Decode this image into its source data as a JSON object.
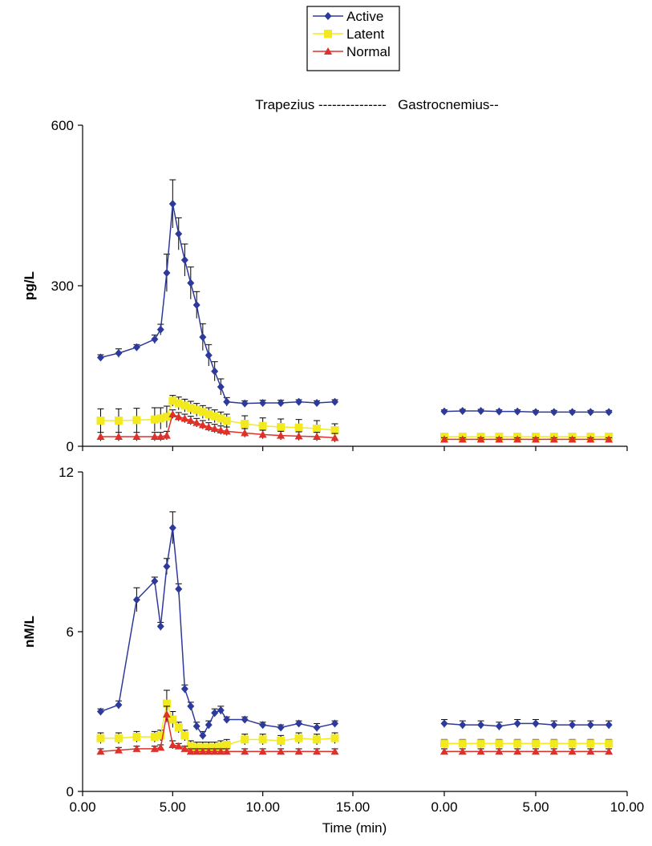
{
  "chart_data": {
    "type": "line",
    "header": "Trapezius ---------------   Gastrocnemius--",
    "xlabel": "Time (min)",
    "series": [
      {
        "name": "Active",
        "color": "#2e3a9b",
        "marker": "diamond"
      },
      {
        "name": "Latent",
        "color": "#f2ea1f",
        "marker": "square"
      },
      {
        "name": "Normal",
        "color": "#e0302a",
        "marker": "triangle"
      }
    ],
    "segments": [
      {
        "xlim": [
          0,
          15
        ],
        "xticks": [
          {
            "value": 0,
            "label": "0.00"
          },
          {
            "value": 5,
            "label": "5.00"
          },
          {
            "value": 10,
            "label": "10.00"
          },
          {
            "value": 15,
            "label": "15.00"
          }
        ]
      },
      {
        "xlim": [
          0,
          10
        ],
        "xticks": [
          {
            "value": 0,
            "label": "0.00"
          },
          {
            "value": 5,
            "label": "5.00"
          },
          {
            "value": 10,
            "label": "10.00"
          }
        ]
      }
    ],
    "panels": [
      {
        "ylabel": "pg/L",
        "ylim": [
          0,
          600
        ],
        "yticks": [
          0,
          300,
          600
        ],
        "series": [
          {
            "segments": [
              {
                "x": [
                  1,
                  2,
                  3,
                  4,
                  4.33,
                  4.67,
                  5,
                  5.33,
                  5.67,
                  6,
                  6.33,
                  6.67,
                  7,
                  7.33,
                  7.67,
                  8,
                  9,
                  10,
                  11,
                  12,
                  13,
                  14
                ],
                "values": [
                  166,
                  174,
                  185,
                  200,
                  218,
                  324,
                  453,
                  397,
                  348,
                  305,
                  264,
                  204,
                  170,
                  140,
                  111,
                  83,
                  80,
                  81,
                  81,
                  83,
                  81,
                  83
                ],
                "errors": [
                  5,
                  8,
                  5,
                  8,
                  10,
                  35,
                  45,
                  30,
                  30,
                  30,
                  25,
                  25,
                  20,
                  18,
                  15,
                  8,
                  5,
                  5,
                  5,
                  4,
                  4,
                  4
                ]
              },
              {
                "x": [
                  0,
                  1,
                  2,
                  3,
                  4,
                  5,
                  6,
                  7,
                  8,
                  9
                ],
                "values": [
                  65,
                  66,
                  66,
                  65,
                  65,
                  64,
                  64,
                  64,
                  64,
                  64
                ],
                "errors": [
                  3,
                  3,
                  3,
                  3,
                  3,
                  3,
                  3,
                  3,
                  3,
                  3
                ]
              }
            ]
          },
          {
            "segments": [
              {
                "x": [
                  1,
                  2,
                  3,
                  4,
                  4.33,
                  4.67,
                  5,
                  5.33,
                  5.67,
                  6,
                  6.33,
                  6.67,
                  7,
                  7.33,
                  7.67,
                  8,
                  9,
                  10,
                  11,
                  12,
                  13,
                  14
                ],
                "values": [
                  48,
                  48,
                  49,
                  50,
                  52,
                  55,
                  85,
                  80,
                  76,
                  72,
                  68,
                  64,
                  60,
                  56,
                  52,
                  48,
                  42,
                  38,
                  36,
                  35,
                  33,
                  30
                ],
                "errors": [
                  22,
                  22,
                  22,
                  22,
                  20,
                  20,
                  10,
                  12,
                  12,
                  12,
                  12,
                  12,
                  12,
                  12,
                  12,
                  12,
                  15,
                  15,
                  15,
                  15,
                  15,
                  12
                ]
              },
              {
                "x": [
                  0,
                  1,
                  2,
                  3,
                  4,
                  5,
                  6,
                  7,
                  8,
                  9
                ],
                "values": [
                  18,
                  18,
                  18,
                  18,
                  18,
                  18,
                  18,
                  18,
                  18,
                  18
                ],
                "errors": [
                  5,
                  5,
                  5,
                  5,
                  5,
                  5,
                  5,
                  5,
                  5,
                  5
                ]
              }
            ]
          },
          {
            "segments": [
              {
                "x": [
                  1,
                  2,
                  3,
                  4,
                  4.33,
                  4.67,
                  5,
                  5.33,
                  5.67,
                  6,
                  6.33,
                  6.67,
                  7,
                  7.33,
                  7.67,
                  8,
                  9,
                  10,
                  11,
                  12,
                  13,
                  14
                ],
                "values": [
                  18,
                  18,
                  18,
                  18,
                  18,
                  20,
                  60,
                  55,
                  52,
                  48,
                  44,
                  40,
                  36,
                  33,
                  30,
                  28,
                  25,
                  22,
                  20,
                  19,
                  18,
                  16
                ],
                "errors": [
                  8,
                  8,
                  8,
                  8,
                  8,
                  8,
                  8,
                  8,
                  8,
                  8,
                  8,
                  8,
                  8,
                  8,
                  8,
                  8,
                  8,
                  8,
                  8,
                  8,
                  8,
                  8
                ]
              },
              {
                "x": [
                  0,
                  1,
                  2,
                  3,
                  4,
                  5,
                  6,
                  7,
                  8,
                  9
                ],
                "values": [
                  13,
                  13,
                  13,
                  13,
                  13,
                  13,
                  13,
                  13,
                  13,
                  13
                ],
                "errors": [
                  3,
                  3,
                  3,
                  3,
                  3,
                  3,
                  3,
                  3,
                  3,
                  3
                ]
              }
            ]
          }
        ]
      },
      {
        "ylabel": "nM/L",
        "ylim": [
          0,
          12
        ],
        "yticks": [
          0,
          6,
          12
        ],
        "series": [
          {
            "segments": [
              {
                "x": [
                  1,
                  2,
                  3,
                  4,
                  4.33,
                  4.67,
                  5,
                  5.33,
                  5.67,
                  6,
                  6.33,
                  6.67,
                  7,
                  7.33,
                  7.67,
                  8,
                  9,
                  10,
                  11,
                  12,
                  13,
                  14
                ],
                "values": [
                  3.0,
                  3.25,
                  7.2,
                  7.9,
                  6.2,
                  8.45,
                  9.9,
                  7.6,
                  3.85,
                  3.2,
                  2.45,
                  2.1,
                  2.5,
                  2.95,
                  3.05,
                  2.7,
                  2.7,
                  2.5,
                  2.4,
                  2.55,
                  2.4,
                  2.55
                ],
                "errors": [
                  0.1,
                  0.15,
                  0.45,
                  0.15,
                  0.15,
                  0.3,
                  0.6,
                  0.2,
                  0.15,
                  0.15,
                  0.15,
                  0.15,
                  0.15,
                  0.15,
                  0.15,
                  0.1,
                  0.1,
                  0.1,
                  0.1,
                  0.1,
                  0.15,
                  0.1
                ]
              },
              {
                "x": [
                  0,
                  1,
                  2,
                  3,
                  4,
                  5,
                  6,
                  7,
                  8,
                  9
                ],
                "values": [
                  2.55,
                  2.5,
                  2.5,
                  2.45,
                  2.55,
                  2.55,
                  2.5,
                  2.5,
                  2.5,
                  2.5
                ],
                "errors": [
                  0.15,
                  0.15,
                  0.15,
                  0.15,
                  0.15,
                  0.15,
                  0.15,
                  0.15,
                  0.15,
                  0.15
                ]
              }
            ]
          },
          {
            "segments": [
              {
                "x": [
                  1,
                  2,
                  3,
                  4,
                  4.33,
                  4.67,
                  5,
                  5.33,
                  5.67,
                  6,
                  6.33,
                  6.67,
                  7,
                  7.33,
                  7.67,
                  8,
                  9,
                  10,
                  11,
                  12,
                  13,
                  14
                ],
                "values": [
                  2.0,
                  2.0,
                  2.05,
                  2.05,
                  2.1,
                  3.3,
                  2.7,
                  2.4,
                  2.1,
                  1.7,
                  1.65,
                  1.65,
                  1.65,
                  1.65,
                  1.7,
                  1.75,
                  1.95,
                  1.95,
                  1.9,
                  2.0,
                  1.95,
                  2.0
                ],
                "errors": [
                  0.2,
                  0.2,
                  0.2,
                  0.2,
                  0.2,
                  0.5,
                  0.3,
                  0.2,
                  0.2,
                  0.2,
                  0.2,
                  0.2,
                  0.2,
                  0.2,
                  0.2,
                  0.2,
                  0.2,
                  0.2,
                  0.2,
                  0.2,
                  0.2,
                  0.2
                ]
              },
              {
                "x": [
                  0,
                  1,
                  2,
                  3,
                  4,
                  5,
                  6,
                  7,
                  8,
                  9
                ],
                "values": [
                  1.8,
                  1.8,
                  1.8,
                  1.8,
                  1.8,
                  1.8,
                  1.8,
                  1.8,
                  1.8,
                  1.8
                ],
                "errors": [
                  0.15,
                  0.15,
                  0.15,
                  0.15,
                  0.15,
                  0.15,
                  0.15,
                  0.15,
                  0.15,
                  0.15
                ]
              }
            ]
          },
          {
            "segments": [
              {
                "x": [
                  1,
                  2,
                  3,
                  4,
                  4.33,
                  4.67,
                  5,
                  5.33,
                  5.67,
                  6,
                  6.33,
                  6.67,
                  7,
                  7.33,
                  7.67,
                  8,
                  9,
                  10,
                  11,
                  12,
                  13,
                  14
                ],
                "values": [
                  1.5,
                  1.55,
                  1.6,
                  1.6,
                  1.65,
                  2.9,
                  1.75,
                  1.7,
                  1.6,
                  1.5,
                  1.5,
                  1.5,
                  1.5,
                  1.5,
                  1.5,
                  1.5,
                  1.5,
                  1.5,
                  1.5,
                  1.5,
                  1.5,
                  1.5
                ],
                "errors": [
                  0.1,
                  0.1,
                  0.1,
                  0.1,
                  0.1,
                  0.3,
                  0.15,
                  0.1,
                  0.1,
                  0.1,
                  0.1,
                  0.1,
                  0.1,
                  0.1,
                  0.1,
                  0.1,
                  0.1,
                  0.1,
                  0.1,
                  0.1,
                  0.1,
                  0.1
                ]
              },
              {
                "x": [
                  0,
                  1,
                  2,
                  3,
                  4,
                  5,
                  6,
                  7,
                  8,
                  9
                ],
                "values": [
                  1.5,
                  1.5,
                  1.5,
                  1.5,
                  1.5,
                  1.5,
                  1.5,
                  1.5,
                  1.5,
                  1.5
                ],
                "errors": [
                  0.1,
                  0.1,
                  0.1,
                  0.1,
                  0.1,
                  0.1,
                  0.1,
                  0.1,
                  0.1,
                  0.1
                ]
              }
            ]
          }
        ]
      }
    ]
  }
}
